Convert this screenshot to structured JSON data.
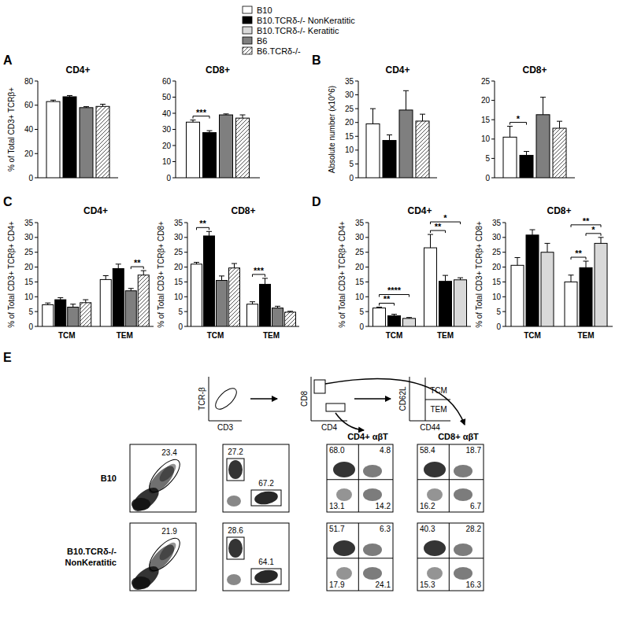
{
  "legend": [
    {
      "name": "B10",
      "color": "#ffffff"
    },
    {
      "name": "B10.TCRδ-/- NonKeratitic",
      "color": "#000000"
    },
    {
      "name": "B10.TCRδ-/- Keratitic",
      "color": "#d9d9d9"
    },
    {
      "name": "B6",
      "color": "#7f7f7f"
    },
    {
      "name": "B6.TCRδ-/-",
      "color": "#ffffff",
      "line_style": "hatched"
    }
  ],
  "panel_labels": [
    "A",
    "B",
    "C",
    "D",
    "E"
  ],
  "chart_data": [
    {
      "type": "bar",
      "title": "CD4+",
      "ylabel": "% of Total CD3+ TCRβ+",
      "categories": [
        null
      ],
      "series": [
        {
          "name": "B10",
          "color": "#ffffff",
          "values": [
            63
          ],
          "errors": [
            1.2
          ]
        },
        {
          "name": "B10.TCRδ-/- NonKeratitic",
          "color": "#000000",
          "values": [
            67
          ],
          "errors": [
            1
          ]
        },
        {
          "name": "B6",
          "color": "#7f7f7f",
          "values": [
            58
          ],
          "errors": [
            0.8
          ]
        },
        {
          "name": "B6.TCRδ-/-",
          "color": "#ffffff",
          "line_style": "hatched",
          "values": [
            59
          ],
          "errors": [
            1.8
          ]
        }
      ],
      "ylim": [
        0,
        80
      ],
      "yticks": [
        0,
        20,
        40,
        60,
        80
      ],
      "annotations": []
    },
    {
      "type": "bar",
      "title": "CD8+",
      "categories": [
        null
      ],
      "series": [
        {
          "name": "B10",
          "color": "#ffffff",
          "values": [
            34.5
          ],
          "errors": [
            1.3
          ]
        },
        {
          "name": "B10.TCRδ-/- NonKeratitic",
          "color": "#000000",
          "values": [
            28
          ],
          "errors": [
            1.2
          ]
        },
        {
          "name": "B6",
          "color": "#7f7f7f",
          "values": [
            39
          ],
          "errors": [
            0.6
          ]
        },
        {
          "name": "B6.TCRδ-/-",
          "color": "#ffffff",
          "line_style": "hatched",
          "values": [
            37
          ],
          "errors": [
            2
          ]
        }
      ],
      "ylim": [
        0,
        60
      ],
      "yticks": [
        0,
        10,
        20,
        30,
        40,
        50,
        60
      ],
      "annotations": [
        {
          "text": "***",
          "category": 0,
          "between": [
            0,
            1
          ]
        }
      ]
    },
    {
      "type": "bar",
      "title": "CD4+",
      "ylabel": "Absolute number (x10^6)",
      "categories": [
        null
      ],
      "series": [
        {
          "name": "B10",
          "color": "#ffffff",
          "values": [
            19.5
          ],
          "errors": [
            5.5
          ]
        },
        {
          "name": "B10.TCRδ-/- NonKeratitic",
          "color": "#000000",
          "values": [
            13.5
          ],
          "errors": [
            2
          ]
        },
        {
          "name": "B6",
          "color": "#7f7f7f",
          "values": [
            24.5
          ],
          "errors": [
            7
          ]
        },
        {
          "name": "B6.TCRδ-/-",
          "color": "#ffffff",
          "line_style": "hatched",
          "values": [
            20.5
          ],
          "errors": [
            2.5
          ]
        }
      ],
      "ylim": [
        0,
        35
      ],
      "yticks": [
        0,
        5,
        10,
        15,
        20,
        25,
        30,
        35
      ],
      "annotations": []
    },
    {
      "type": "bar",
      "title": "CD8+",
      "categories": [
        null
      ],
      "series": [
        {
          "name": "B10",
          "color": "#ffffff",
          "values": [
            10.5
          ],
          "errors": [
            2.8
          ]
        },
        {
          "name": "B10.TCRδ-/- NonKeratitic",
          "color": "#000000",
          "values": [
            5.8
          ],
          "errors": [
            1
          ]
        },
        {
          "name": "B6",
          "color": "#7f7f7f",
          "values": [
            16.3
          ],
          "errors": [
            4.5
          ]
        },
        {
          "name": "B6.TCRδ-/-",
          "color": "#ffffff",
          "line_style": "hatched",
          "values": [
            12.8
          ],
          "errors": [
            1.8
          ]
        }
      ],
      "ylim": [
        0,
        25
      ],
      "yticks": [
        0,
        5,
        10,
        15,
        20,
        25
      ],
      "annotations": [
        {
          "text": "*",
          "category": 0,
          "between": [
            0,
            1
          ]
        }
      ]
    },
    {
      "type": "bar",
      "title": "CD4+",
      "ylabel": "% of Total CD3+ TCRβ+ CD4+",
      "categories": [
        "TCM",
        "TEM"
      ],
      "series": [
        {
          "name": "B10",
          "color": "#ffffff",
          "values": [
            7.3,
            15.8
          ],
          "errors": [
            0.6,
            1.3
          ]
        },
        {
          "name": "B10.TCRδ-/- NonKeratitic",
          "color": "#000000",
          "values": [
            9,
            19.5
          ],
          "errors": [
            0.7,
            1.5
          ]
        },
        {
          "name": "B6",
          "color": "#7f7f7f",
          "values": [
            6.5,
            12
          ],
          "errors": [
            1,
            0.8
          ]
        },
        {
          "name": "B6.TCRδ-/-",
          "color": "#ffffff",
          "line_style": "hatched",
          "values": [
            8,
            17.3
          ],
          "errors": [
            1,
            1.5
          ]
        }
      ],
      "ylim": [
        0,
        35
      ],
      "yticks": [
        0,
        5,
        10,
        15,
        20,
        25,
        30,
        35
      ],
      "annotations": [
        {
          "text": "**",
          "category": 1,
          "between": [
            2,
            3
          ]
        }
      ]
    },
    {
      "type": "bar",
      "title": "CD8+",
      "ylabel": "% of Total CD3+ TCRβ+ CD8+",
      "categories": [
        "TCM",
        "TEM"
      ],
      "series": [
        {
          "name": "B10",
          "color": "#ffffff",
          "values": [
            21,
            7.5
          ],
          "errors": [
            0.6,
            0.8
          ]
        },
        {
          "name": "B10.TCRδ-/- NonKeratitic",
          "color": "#000000",
          "values": [
            30.5,
            14.2
          ],
          "errors": [
            1.5,
            2
          ]
        },
        {
          "name": "B6",
          "color": "#7f7f7f",
          "values": [
            15.5,
            6.2
          ],
          "errors": [
            1.5,
            0.6
          ]
        },
        {
          "name": "B6.TCRδ-/-",
          "color": "#ffffff",
          "line_style": "hatched",
          "values": [
            19.7,
            4.8
          ],
          "errors": [
            1.5,
            0.3
          ]
        }
      ],
      "ylim": [
        0,
        35
      ],
      "yticks": [
        0,
        5,
        10,
        15,
        20,
        25,
        30,
        35
      ],
      "annotations": [
        {
          "text": "**",
          "category": 0,
          "between": [
            0,
            1
          ]
        },
        {
          "text": "***",
          "category": 1,
          "between": [
            0,
            1
          ]
        }
      ]
    },
    {
      "type": "bar",
      "title": "CD4+",
      "ylabel": "% of Total CD3+ TCRβ+ CD4+",
      "categories": [
        "TCM",
        "TEM"
      ],
      "series": [
        {
          "name": "B10",
          "color": "#ffffff",
          "values": [
            6.2,
            26.5
          ],
          "errors": [
            0.3,
            4.5
          ]
        },
        {
          "name": "B10.TCRδ-/- NonKeratitic",
          "color": "#000000",
          "values": [
            3.6,
            15.2
          ],
          "errors": [
            0.5,
            2
          ]
        },
        {
          "name": "B10.TCRδ-/- Keratitic",
          "color": "#d9d9d9",
          "values": [
            2.7,
            15.7
          ],
          "errors": [
            0.3,
            0.7
          ]
        }
      ],
      "ylim": [
        0,
        35
      ],
      "yticks": [
        0,
        5,
        10,
        15,
        20,
        25,
        30,
        35
      ],
      "annotations": [
        {
          "text": "**",
          "category": 0,
          "between": [
            0,
            1
          ]
        },
        {
          "text": "****",
          "category": 0,
          "between": [
            0,
            2
          ]
        },
        {
          "text": "**",
          "category": 1,
          "between": [
            0,
            1
          ]
        },
        {
          "text": "*",
          "category": 1,
          "between": [
            0,
            2
          ]
        }
      ]
    },
    {
      "type": "bar",
      "title": "CD8+",
      "ylabel": "% of Total CD3+ TCRβ+ CD8+",
      "categories": [
        "TCM",
        "TEM"
      ],
      "series": [
        {
          "name": "B10",
          "color": "#ffffff",
          "values": [
            20.6,
            15
          ],
          "errors": [
            2.6,
            2.3
          ]
        },
        {
          "name": "B10.TCRδ-/- NonKeratitic",
          "color": "#000000",
          "values": [
            30.8,
            19.8
          ],
          "errors": [
            1.8,
            2.2
          ]
        },
        {
          "name": "B10.TCRδ-/- Keratitic",
          "color": "#d9d9d9",
          "values": [
            25,
            28
          ],
          "errors": [
            3,
            2
          ]
        }
      ],
      "ylim": [
        0,
        35
      ],
      "yticks": [
        0,
        5,
        10,
        15,
        20,
        25,
        30,
        35
      ],
      "annotations": [
        {
          "text": "**",
          "category": 1,
          "between": [
            0,
            1
          ]
        },
        {
          "text": "*",
          "category": 1,
          "between": [
            1,
            2
          ]
        },
        {
          "text": "**",
          "category": 1,
          "between": [
            0,
            2
          ]
        }
      ]
    }
  ],
  "flow": {
    "gates": [
      {
        "x_label": "CD3",
        "y_label": "TCR-β"
      },
      {
        "x_label": "CD4",
        "y_label": "CD8"
      },
      {
        "x_label": "CD44",
        "y_label": "CD62L",
        "quadrants": [
          "TCM",
          "TEM"
        ]
      }
    ],
    "columns": [
      "CD4+ αβT",
      "CD8+ αβT"
    ],
    "rows": [
      {
        "label": [
          "B10"
        ],
        "tcr_gate": "23.4",
        "cd8_gate": "27.2",
        "cd4_gate": "67.2",
        "cd4_quadrants": [
          "68.0",
          "4.8",
          "13.1",
          "14.2"
        ],
        "cd8_quadrants": [
          "58.4",
          "18.7",
          "16.2",
          "6.7"
        ]
      },
      {
        "label": [
          "B10.TCRδ-/-",
          "NonKeratitic"
        ],
        "tcr_gate": "21.9",
        "cd8_gate": "28.6",
        "cd4_gate": "64.1",
        "cd4_quadrants": [
          "51.7",
          "6.3",
          "17.9",
          "24.1"
        ],
        "cd8_quadrants": [
          "40.3",
          "28.2",
          "15.3",
          "16.3"
        ]
      }
    ]
  }
}
